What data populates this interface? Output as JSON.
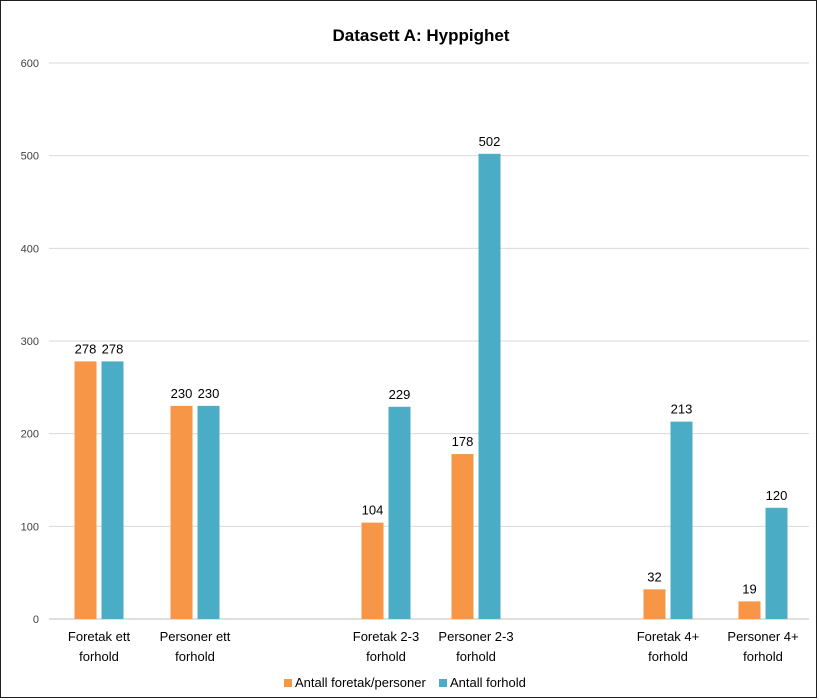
{
  "chart_data": {
    "type": "bar",
    "title": "Datasett A: Hyppighet",
    "xlabel": "",
    "ylabel": "",
    "ylim": [
      0,
      600
    ],
    "yticks": [
      "0",
      "100",
      "200",
      "300",
      "400",
      "500",
      "600"
    ],
    "grid": true,
    "legend_position": "bottom",
    "categories": [
      [
        "Foretak ett",
        "forhold"
      ],
      [
        "Personer ett",
        "forhold"
      ],
      [
        "Foretak 2-3",
        "forhold"
      ],
      [
        "Personer 2-3",
        "forhold"
      ],
      [
        "Foretak 4+",
        "forhold"
      ],
      [
        "Personer 4+",
        "forhold"
      ]
    ],
    "series": [
      {
        "name": "Antall foretak/personer",
        "color": "#f79646",
        "values": [
          278,
          230,
          104,
          178,
          32,
          19
        ]
      },
      {
        "name": "Antall forhold",
        "color": "#4bacc6",
        "values": [
          278,
          230,
          229,
          502,
          213,
          120
        ]
      }
    ]
  }
}
